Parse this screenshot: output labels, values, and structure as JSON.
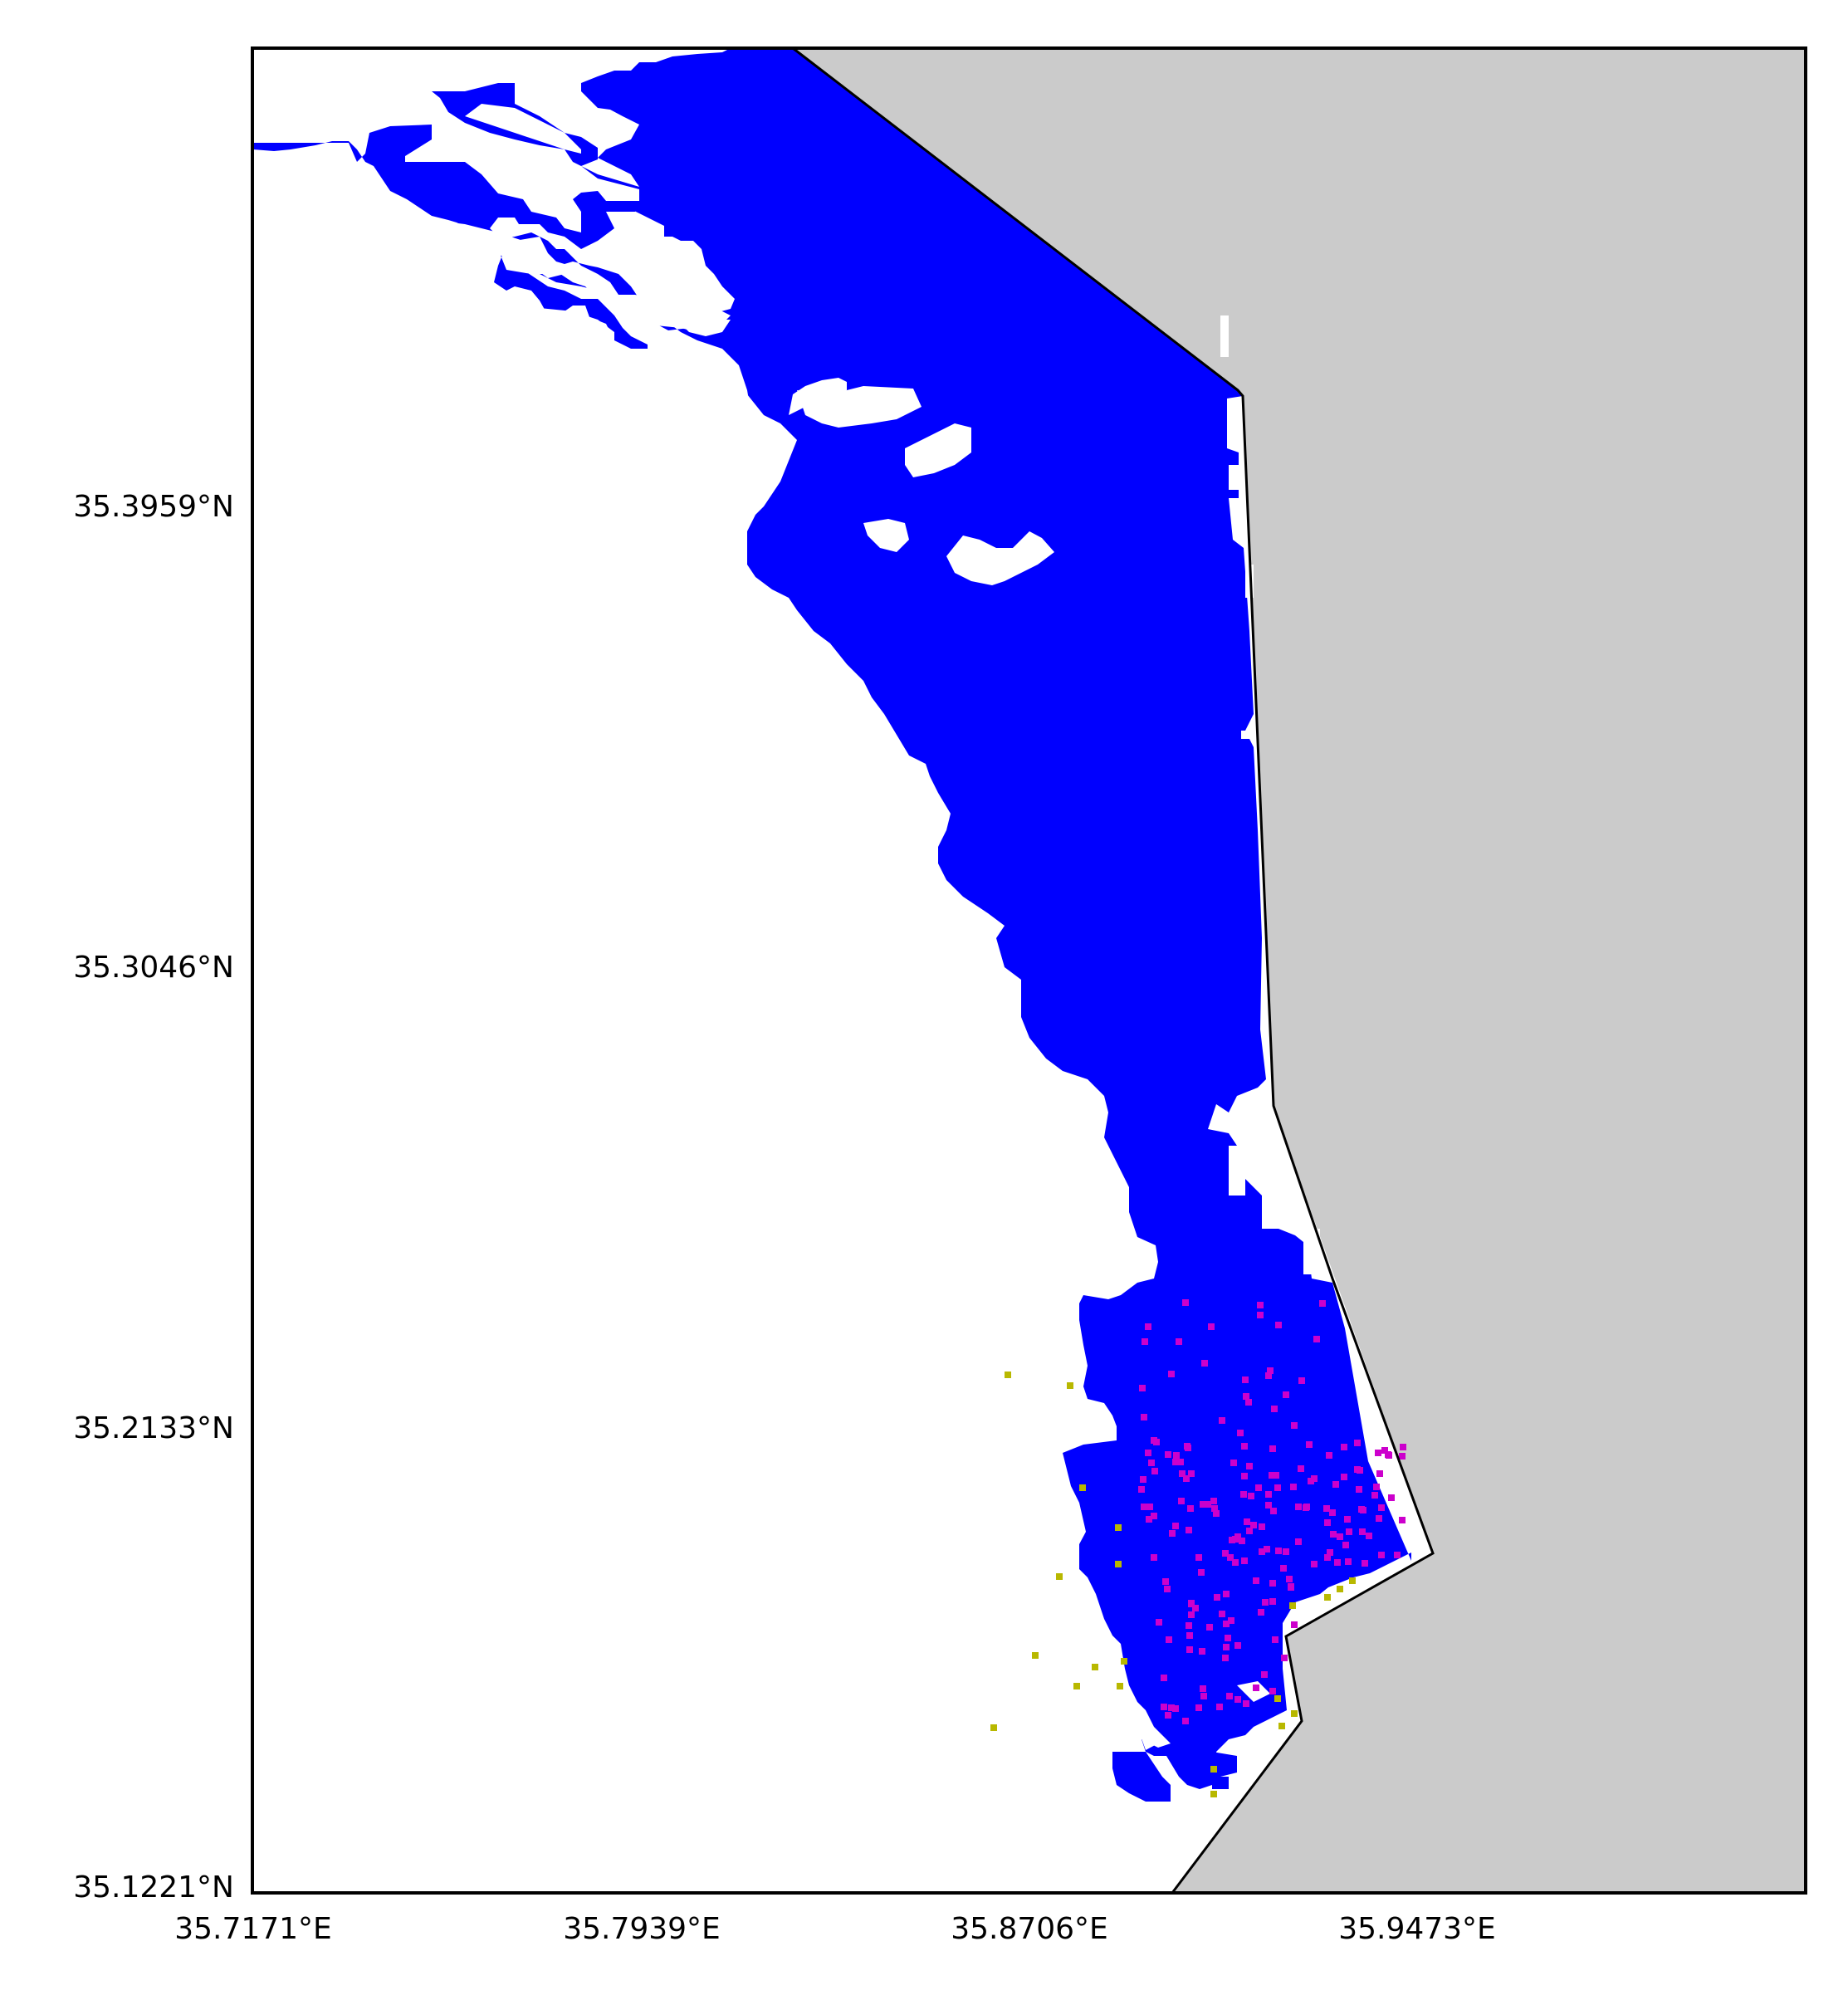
{
  "map": {
    "lat_labels": [
      "35.3959°N",
      "35.3046°N",
      "35.2133°N",
      "35.1221°N"
    ],
    "lon_labels": [
      "35.7171°E",
      "35.7939°E",
      "35.8706°E",
      "35.9473°E"
    ],
    "colors": {
      "land": "#cbcbcb",
      "sea": "#ffffff",
      "primary_area": "#0000ff",
      "magenta_points": "#cc00cc",
      "yellow_points": "#b8b800",
      "coastline": "#000000"
    }
  }
}
